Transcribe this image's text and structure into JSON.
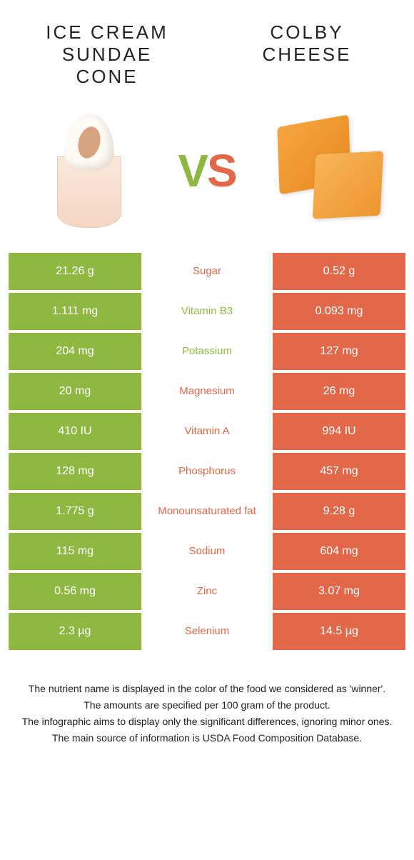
{
  "colors": {
    "left": "#8fb843",
    "right": "#e2684a",
    "background": "#ffffff"
  },
  "header": {
    "left_title": "ICE CREAM\nSUNDAE\nCONE",
    "right_title": "COLBY\nCHEESE",
    "vs_v": "V",
    "vs_s": "S"
  },
  "nutrient_rows": [
    {
      "left": "21.26 g",
      "label": "Sugar",
      "right": "0.52 g",
      "winner": "right"
    },
    {
      "left": "1.111 mg",
      "label": "Vitamin B3",
      "right": "0.093 mg",
      "winner": "left"
    },
    {
      "left": "204 mg",
      "label": "Potassium",
      "right": "127 mg",
      "winner": "left"
    },
    {
      "left": "20 mg",
      "label": "Magnesium",
      "right": "26 mg",
      "winner": "right"
    },
    {
      "left": "410 IU",
      "label": "Vitamin A",
      "right": "994 IU",
      "winner": "right"
    },
    {
      "left": "128 mg",
      "label": "Phosphorus",
      "right": "457 mg",
      "winner": "right"
    },
    {
      "left": "1.775 g",
      "label": "Monounsaturated fat",
      "right": "9.28 g",
      "winner": "right"
    },
    {
      "left": "115 mg",
      "label": "Sodium",
      "right": "604 mg",
      "winner": "right"
    },
    {
      "left": "0.56 mg",
      "label": "Zinc",
      "right": "3.07 mg",
      "winner": "right"
    },
    {
      "left": "2.3 µg",
      "label": "Selenium",
      "right": "14.5 µg",
      "winner": "right"
    }
  ],
  "footer": {
    "line1": "The nutrient name is displayed in the color of the food we considered as 'winner'.",
    "line2": "The amounts are specified per 100 gram of the product.",
    "line3": "The infographic aims to display only the significant differences, ignoring minor ones.",
    "line4": "The main source of information is USDA Food Composition Database."
  }
}
